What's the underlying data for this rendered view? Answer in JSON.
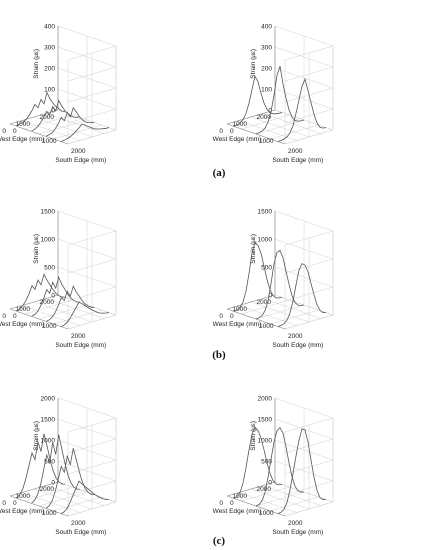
{
  "figure": {
    "labels": [
      "(a)",
      "(b)",
      "(c)"
    ]
  },
  "chart_data": [
    {
      "type": "line",
      "panel": "(a) left",
      "zlabel": "Strain (με)",
      "xlabel": "West Edge (mm)",
      "ylabel": "South Edge (mm)",
      "zlim": [
        0,
        400
      ],
      "zticks": [
        "0",
        "100",
        "200",
        "300",
        "400"
      ],
      "xticks": [
        "2000",
        "1000",
        "0"
      ],
      "yticks": [
        "0",
        "1000",
        "2000"
      ],
      "grid": true,
      "series": [
        {
          "values": [
            5,
            8,
            12,
            20,
            35,
            55,
            80,
            60,
            95,
            70,
            120,
            85,
            60,
            40,
            25,
            10,
            5
          ]
        },
        {
          "values": [
            3,
            6,
            15,
            30,
            50,
            75,
            55,
            90,
            65,
            110,
            80,
            55,
            35,
            20,
            10,
            5,
            2
          ]
        },
        {
          "values": [
            2,
            5,
            10,
            25,
            45,
            70,
            50,
            85,
            60,
            100,
            75,
            50,
            30,
            15,
            8,
            4,
            2
          ]
        },
        {
          "values": [
            0,
            2,
            5,
            10,
            18,
            28,
            40,
            55,
            45,
            35,
            25,
            15,
            10,
            6,
            3,
            1,
            0
          ]
        }
      ]
    },
    {
      "type": "line",
      "panel": "(a) right",
      "zlabel": "Strain (με)",
      "xlabel": "West Edge (mm)",
      "ylabel": "South Edge (mm)",
      "zlim": [
        0,
        400
      ],
      "zticks": [
        "0",
        "100",
        "200",
        "300",
        "400"
      ],
      "xticks": [
        "2000",
        "1000",
        "0"
      ],
      "yticks": [
        "0",
        "1000",
        "2000"
      ],
      "grid": true,
      "series": [
        {
          "values": [
            0,
            3,
            8,
            20,
            45,
            90,
            150,
            210,
            180,
            120,
            70,
            35,
            15,
            6,
            2,
            0,
            0
          ]
        },
        {
          "values": [
            0,
            2,
            6,
            15,
            40,
            85,
            160,
            250,
            290,
            200,
            130,
            70,
            30,
            10,
            3,
            0,
            0
          ]
        },
        {
          "values": [
            0,
            1,
            4,
            10,
            25,
            55,
            110,
            170,
            230,
            260,
            200,
            140,
            80,
            35,
            10,
            2,
            0
          ]
        }
      ]
    },
    {
      "type": "line",
      "panel": "(b) left",
      "zlabel": "Strain (με)",
      "xlabel": "West Edge (mm)",
      "ylabel": "South Edge (mm)",
      "zlim": [
        0,
        1500
      ],
      "zticks": [
        "0",
        "500",
        "1000",
        "1500"
      ],
      "xticks": [
        "2000",
        "1000",
        "0"
      ],
      "yticks": [
        "0",
        "1000",
        "2000"
      ],
      "grid": true,
      "series": [
        {
          "values": [
            10,
            30,
            80,
            150,
            250,
            380,
            300,
            450,
            350,
            520,
            400,
            300,
            200,
            120,
            60,
            20,
            5
          ]
        },
        {
          "values": [
            5,
            20,
            60,
            140,
            260,
            400,
            320,
            500,
            380,
            560,
            420,
            320,
            210,
            130,
            70,
            25,
            5
          ]
        },
        {
          "values": [
            5,
            15,
            50,
            120,
            220,
            350,
            280,
            430,
            330,
            490,
            370,
            280,
            180,
            110,
            55,
            20,
            5
          ]
        },
        {
          "values": [
            0,
            10,
            40,
            100,
            180,
            260,
            340,
            300,
            250,
            200,
            150,
            110,
            70,
            40,
            20,
            8,
            0
          ]
        }
      ]
    },
    {
      "type": "line",
      "panel": "(b) right",
      "zlabel": "Strain (με)",
      "xlabel": "West Edge (mm)",
      "ylabel": "South Edge (mm)",
      "zlim": [
        0,
        1500
      ],
      "zticks": [
        "0",
        "500",
        "1000",
        "1500"
      ],
      "xticks": [
        "2000",
        "1000",
        "0"
      ],
      "yticks": [
        "0",
        "1000",
        "2000"
      ],
      "grid": true,
      "series": [
        {
          "values": [
            0,
            10,
            40,
            120,
            300,
            600,
            950,
            1120,
            1050,
            900,
            650,
            400,
            200,
            80,
            25,
            5,
            0
          ]
        },
        {
          "values": [
            0,
            8,
            30,
            100,
            260,
            550,
            900,
            1080,
            1100,
            950,
            700,
            450,
            230,
            90,
            30,
            6,
            0
          ]
        },
        {
          "values": [
            0,
            5,
            20,
            70,
            180,
            380,
            650,
            900,
            1000,
            960,
            820,
            600,
            380,
            190,
            70,
            15,
            0
          ]
        }
      ]
    },
    {
      "type": "line",
      "panel": "(c) left",
      "zlabel": "Strain (με)",
      "xlabel": "West Edge (mm)",
      "ylabel": "South Edge (mm)",
      "zlim": [
        0,
        2000
      ],
      "zticks": [
        "0",
        "500",
        "1000",
        "1500",
        "2000"
      ],
      "xticks": [
        "2000",
        "1000",
        "0"
      ],
      "yticks": [
        "0",
        "1000",
        "2000"
      ],
      "grid": true,
      "series": [
        {
          "values": [
            20,
            80,
            200,
            420,
            700,
            980,
            800,
            1200,
            950,
            1350,
            1050,
            700,
            420,
            220,
            100,
            30,
            5
          ]
        },
        {
          "values": [
            10,
            60,
            180,
            400,
            720,
            1050,
            850,
            1300,
            1000,
            1450,
            1100,
            750,
            450,
            230,
            100,
            30,
            5
          ]
        },
        {
          "values": [
            10,
            50,
            150,
            350,
            620,
            900,
            740,
            1100,
            880,
            1250,
            950,
            650,
            390,
            200,
            90,
            25,
            5
          ]
        },
        {
          "values": [
            0,
            20,
            80,
            200,
            350,
            500,
            650,
            560,
            480,
            400,
            320,
            240,
            170,
            110,
            60,
            20,
            0
          ]
        }
      ]
    },
    {
      "type": "line",
      "panel": "(c) right",
      "zlabel": "Strain (με)",
      "xlabel": "West Edge (mm)",
      "ylabel": "South Edge (mm)",
      "zlim": [
        0,
        2000
      ],
      "zticks": [
        "0",
        "500",
        "1000",
        "1500",
        "2000"
      ],
      "xticks": [
        "2000",
        "1000",
        "0"
      ],
      "yticks": [
        "0",
        "1000",
        "2000"
      ],
      "grid": true,
      "series": [
        {
          "values": [
            0,
            20,
            100,
            300,
            650,
            1050,
            1400,
            1550,
            1450,
            1250,
            950,
            620,
            350,
            150,
            50,
            10,
            0
          ]
        },
        {
          "values": [
            0,
            15,
            80,
            260,
            600,
            1000,
            1400,
            1650,
            1700,
            1550,
            1200,
            800,
            450,
            200,
            70,
            15,
            0
          ]
        },
        {
          "values": [
            0,
            10,
            60,
            200,
            480,
            850,
            1250,
            1600,
            1850,
            1800,
            1500,
            1050,
            620,
            280,
            90,
            20,
            0
          ]
        }
      ]
    }
  ]
}
